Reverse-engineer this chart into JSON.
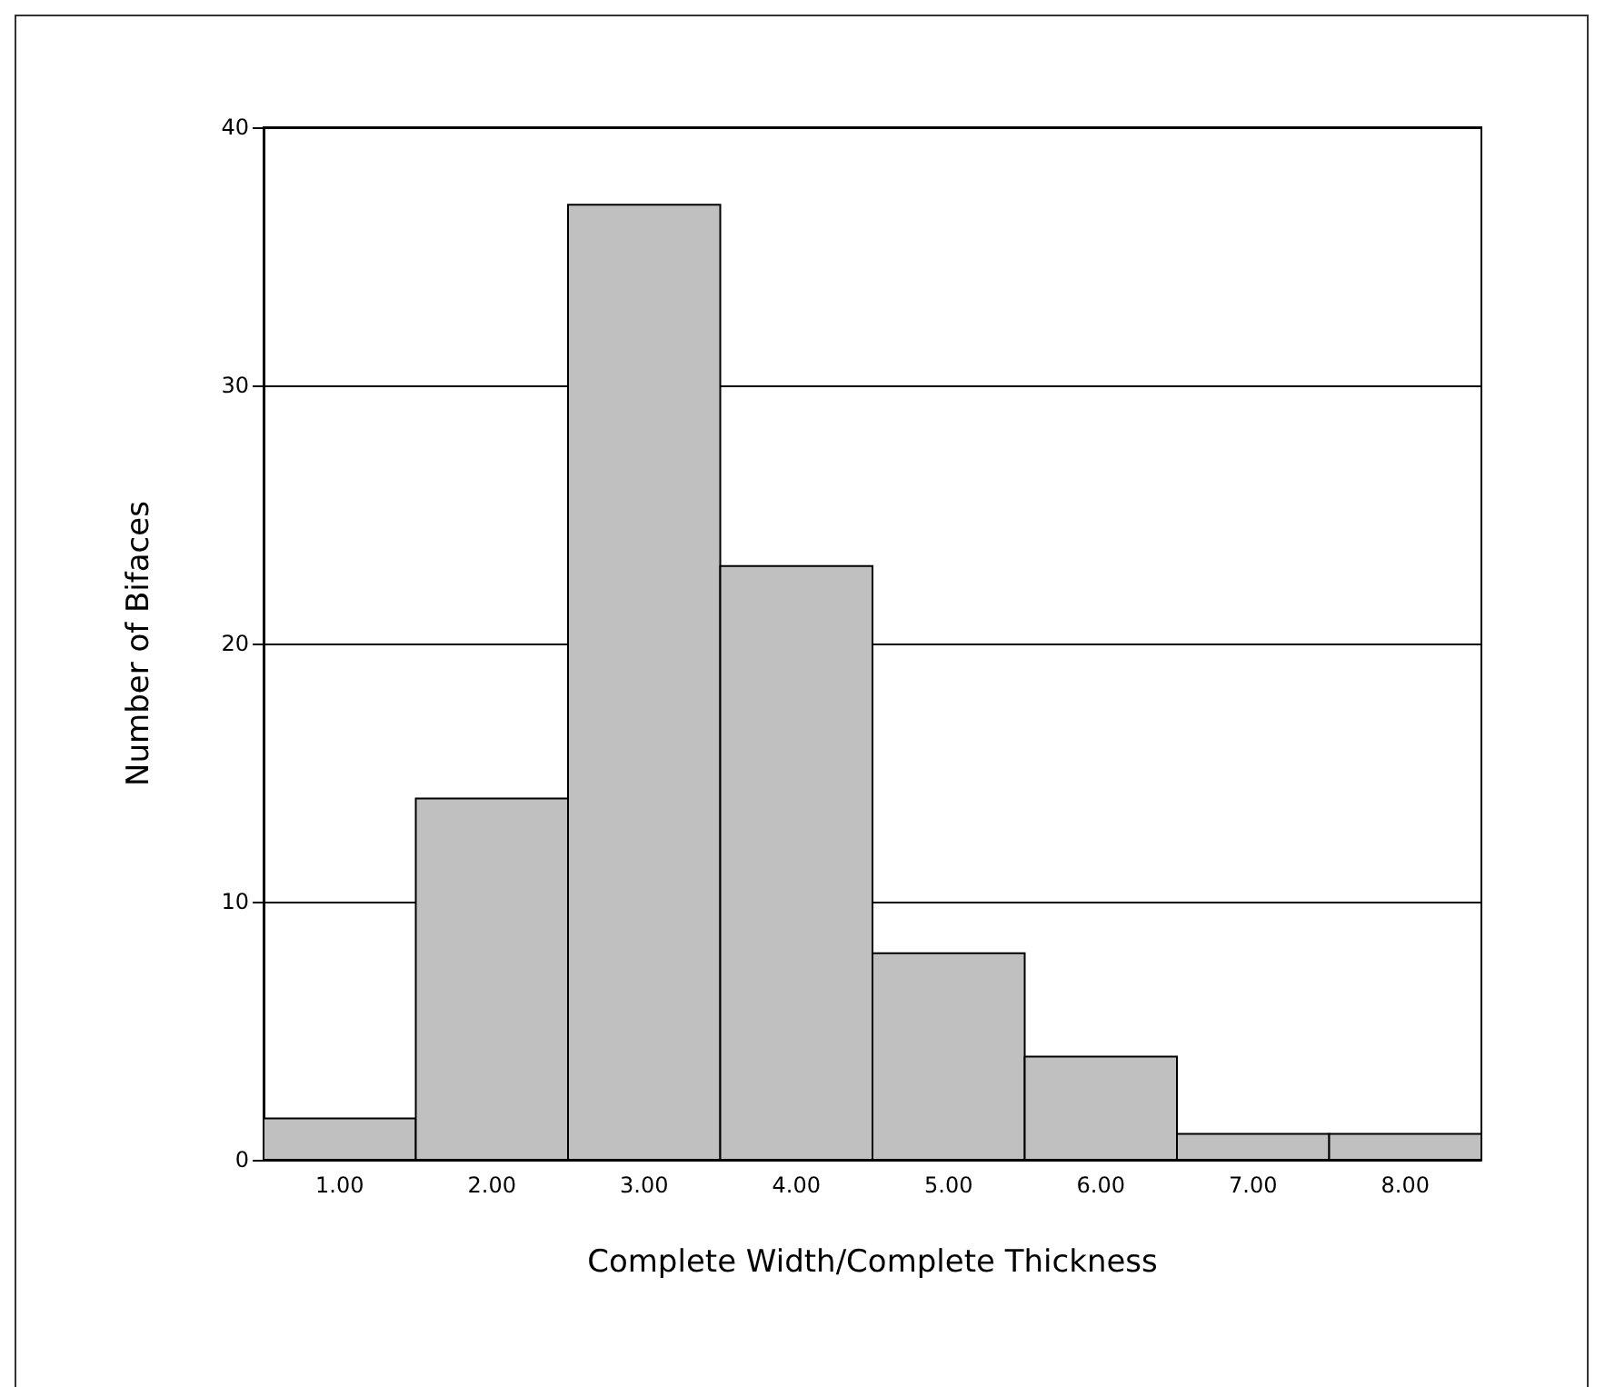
{
  "chart_data": {
    "type": "histogram",
    "xlabel": "Complete Width/Complete Thickness",
    "ylabel": "Number of Bifaces",
    "bins": [
      0.5,
      1.5,
      2.5,
      3.5,
      4.5,
      5.5,
      6.5,
      7.5,
      8.5
    ],
    "values": [
      1.6,
      14,
      37,
      23,
      8,
      4,
      1,
      1
    ],
    "color": "#c0c0c0",
    "xlim": [
      0.5,
      8.5
    ],
    "xticks": [
      {
        "value": 1,
        "label": "1.00"
      },
      {
        "value": 2,
        "label": "2.00"
      },
      {
        "value": 3,
        "label": "3.00"
      },
      {
        "value": 4,
        "label": "4.00"
      },
      {
        "value": 5,
        "label": "5.00"
      },
      {
        "value": 6,
        "label": "6.00"
      },
      {
        "value": 7,
        "label": "7.00"
      },
      {
        "value": 8,
        "label": "8.00"
      }
    ],
    "ylim": [
      0,
      40
    ],
    "yticks": [
      0,
      10,
      20,
      30,
      40
    ],
    "grid": "y"
  }
}
